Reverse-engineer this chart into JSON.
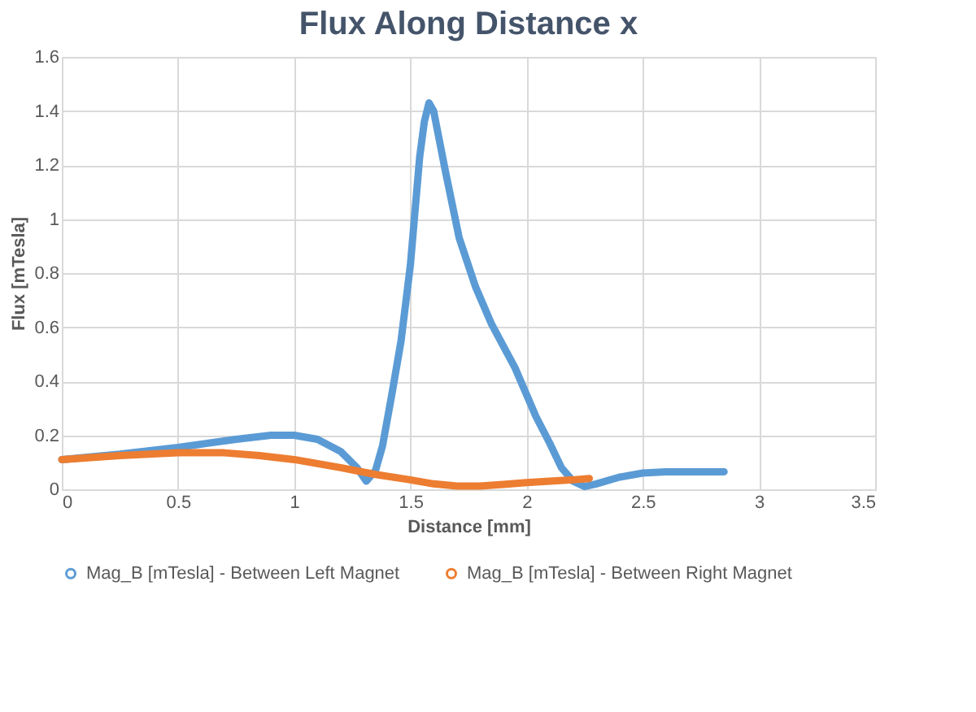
{
  "chart_data": {
    "type": "line",
    "title": "Flux Along Distance x",
    "xlabel": "Distance [mm]",
    "ylabel": "Flux [mTesla]",
    "xlim": [
      0,
      3.5
    ],
    "xticks": [
      0,
      0.5,
      1,
      1.5,
      2,
      2.5,
      3,
      3.5
    ],
    "ylim": [
      0,
      1.6
    ],
    "yticks": [
      0,
      0.2,
      0.4,
      0.6,
      0.8,
      1,
      1.2,
      1.4,
      1.6
    ],
    "grid": true,
    "legend": "bottom",
    "marker": "none",
    "line_style": "solid",
    "series": [
      {
        "name": "Mag_B [mTesla] - Between Left Magnet",
        "color": "#5b9bd5",
        "x": [
          0,
          0.25,
          0.5,
          0.75,
          0.9,
          1.0,
          1.1,
          1.2,
          1.27,
          1.31,
          1.35,
          1.38,
          1.42,
          1.46,
          1.5,
          1.54,
          1.56,
          1.58,
          1.6,
          1.65,
          1.71,
          1.78,
          1.85,
          1.95,
          2.04,
          2.1,
          2.15,
          2.2,
          2.25,
          2.3,
          2.4,
          2.5,
          2.6,
          2.7,
          2.85
        ],
        "values": [
          0.11,
          0.13,
          0.155,
          0.185,
          0.2,
          0.2,
          0.185,
          0.14,
          0.08,
          0.03,
          0.07,
          0.16,
          0.35,
          0.55,
          0.83,
          1.23,
          1.36,
          1.43,
          1.4,
          1.18,
          0.93,
          0.75,
          0.61,
          0.45,
          0.27,
          0.17,
          0.08,
          0.03,
          0.01,
          0.02,
          0.045,
          0.06,
          0.065,
          0.065,
          0.065
        ]
      },
      {
        "name": "Mag_B [mTesla] - Between Right Magnet",
        "color": "#ed7d31",
        "x": [
          0,
          0.25,
          0.5,
          0.7,
          0.85,
          1.0,
          1.2,
          1.35,
          1.5,
          1.6,
          1.7,
          1.8,
          1.9,
          2.0,
          2.1,
          2.2,
          2.27
        ],
        "values": [
          0.11,
          0.125,
          0.135,
          0.135,
          0.125,
          0.11,
          0.08,
          0.055,
          0.035,
          0.02,
          0.012,
          0.012,
          0.018,
          0.025,
          0.03,
          0.035,
          0.04
        ]
      }
    ]
  }
}
